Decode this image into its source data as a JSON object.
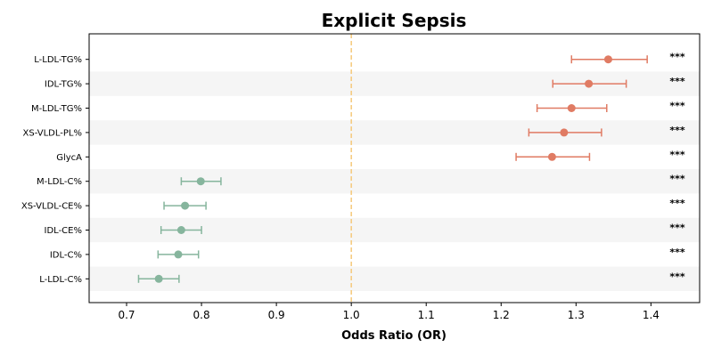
{
  "chart_data": {
    "type": "forest",
    "title": "Explicit Sepsis",
    "xlabel": "Odds Ratio (OR)",
    "ylabel": "",
    "xlim": [
      0.65,
      1.465
    ],
    "xticks": [
      "0.7",
      "0.8",
      "0.9",
      "1.0",
      "1.1",
      "1.2",
      "1.3",
      "1.4"
    ],
    "reference_line": 1.0,
    "colors": {
      "positive": "#e07b63",
      "negative": "#86b59d",
      "reference": "#f5c97a",
      "band": "#f5f5f5"
    },
    "rows": [
      {
        "label": "L-LDL-TG%",
        "or": 1.343,
        "lo": 1.294,
        "hi": 1.395,
        "sig": "***"
      },
      {
        "label": "IDL-TG%",
        "or": 1.317,
        "lo": 1.269,
        "hi": 1.367,
        "sig": "***"
      },
      {
        "label": "M-LDL-TG%",
        "or": 1.294,
        "lo": 1.248,
        "hi": 1.341,
        "sig": "***"
      },
      {
        "label": "XS-VLDL-PL%",
        "or": 1.284,
        "lo": 1.237,
        "hi": 1.334,
        "sig": "***"
      },
      {
        "label": "GlycA",
        "or": 1.268,
        "lo": 1.22,
        "hi": 1.318,
        "sig": "***"
      },
      {
        "label": "M-LDL-C%",
        "or": 0.799,
        "lo": 0.773,
        "hi": 0.826,
        "sig": "***"
      },
      {
        "label": "XS-VLDL-CE%",
        "or": 0.778,
        "lo": 0.75,
        "hi": 0.806,
        "sig": "***"
      },
      {
        "label": "IDL-CE%",
        "or": 0.773,
        "lo": 0.746,
        "hi": 0.8,
        "sig": "***"
      },
      {
        "label": "IDL-C%",
        "or": 0.769,
        "lo": 0.742,
        "hi": 0.796,
        "sig": "***"
      },
      {
        "label": "L-LDL-C%",
        "or": 0.743,
        "lo": 0.716,
        "hi": 0.77,
        "sig": "***"
      }
    ]
  }
}
